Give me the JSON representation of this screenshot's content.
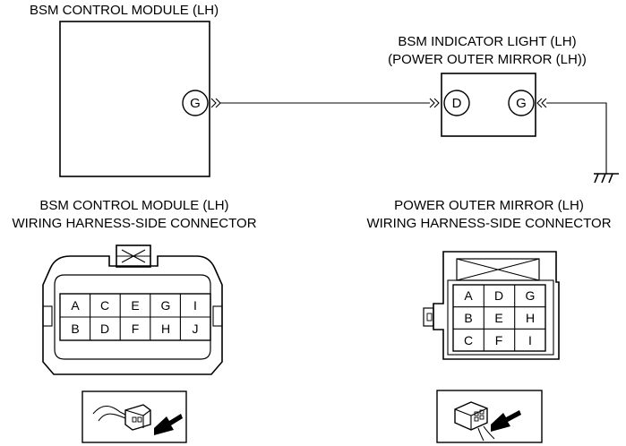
{
  "wiring": {
    "module_title": "BSM CONTROL MODULE (LH)",
    "indicator_title_1": "BSM INDICATOR LIGHT (LH)",
    "indicator_title_2": "(POWER OUTER MIRROR (LH))",
    "module_terminal": "G",
    "indicator_terminal_left": "D",
    "indicator_terminal_right": "G"
  },
  "connectors": {
    "left": {
      "title_1": "BSM CONTROL MODULE (LH)",
      "title_2": "WIRING HARNESS-SIDE CONNECTOR",
      "rows": [
        [
          "A",
          "C",
          "E",
          "G",
          "I"
        ],
        [
          "B",
          "D",
          "F",
          "H",
          "J"
        ]
      ]
    },
    "right": {
      "title_1": "POWER OUTER MIRROR (LH)",
      "title_2": "WIRING HARNESS-SIDE CONNECTOR",
      "rows": [
        [
          "A",
          "D",
          "G"
        ],
        [
          "B",
          "E",
          "H"
        ],
        [
          "C",
          "F",
          "I"
        ]
      ]
    }
  },
  "icons": {
    "ground": "ground-icon",
    "left_view": "connector-view-icon",
    "right_view": "connector-view-icon"
  }
}
